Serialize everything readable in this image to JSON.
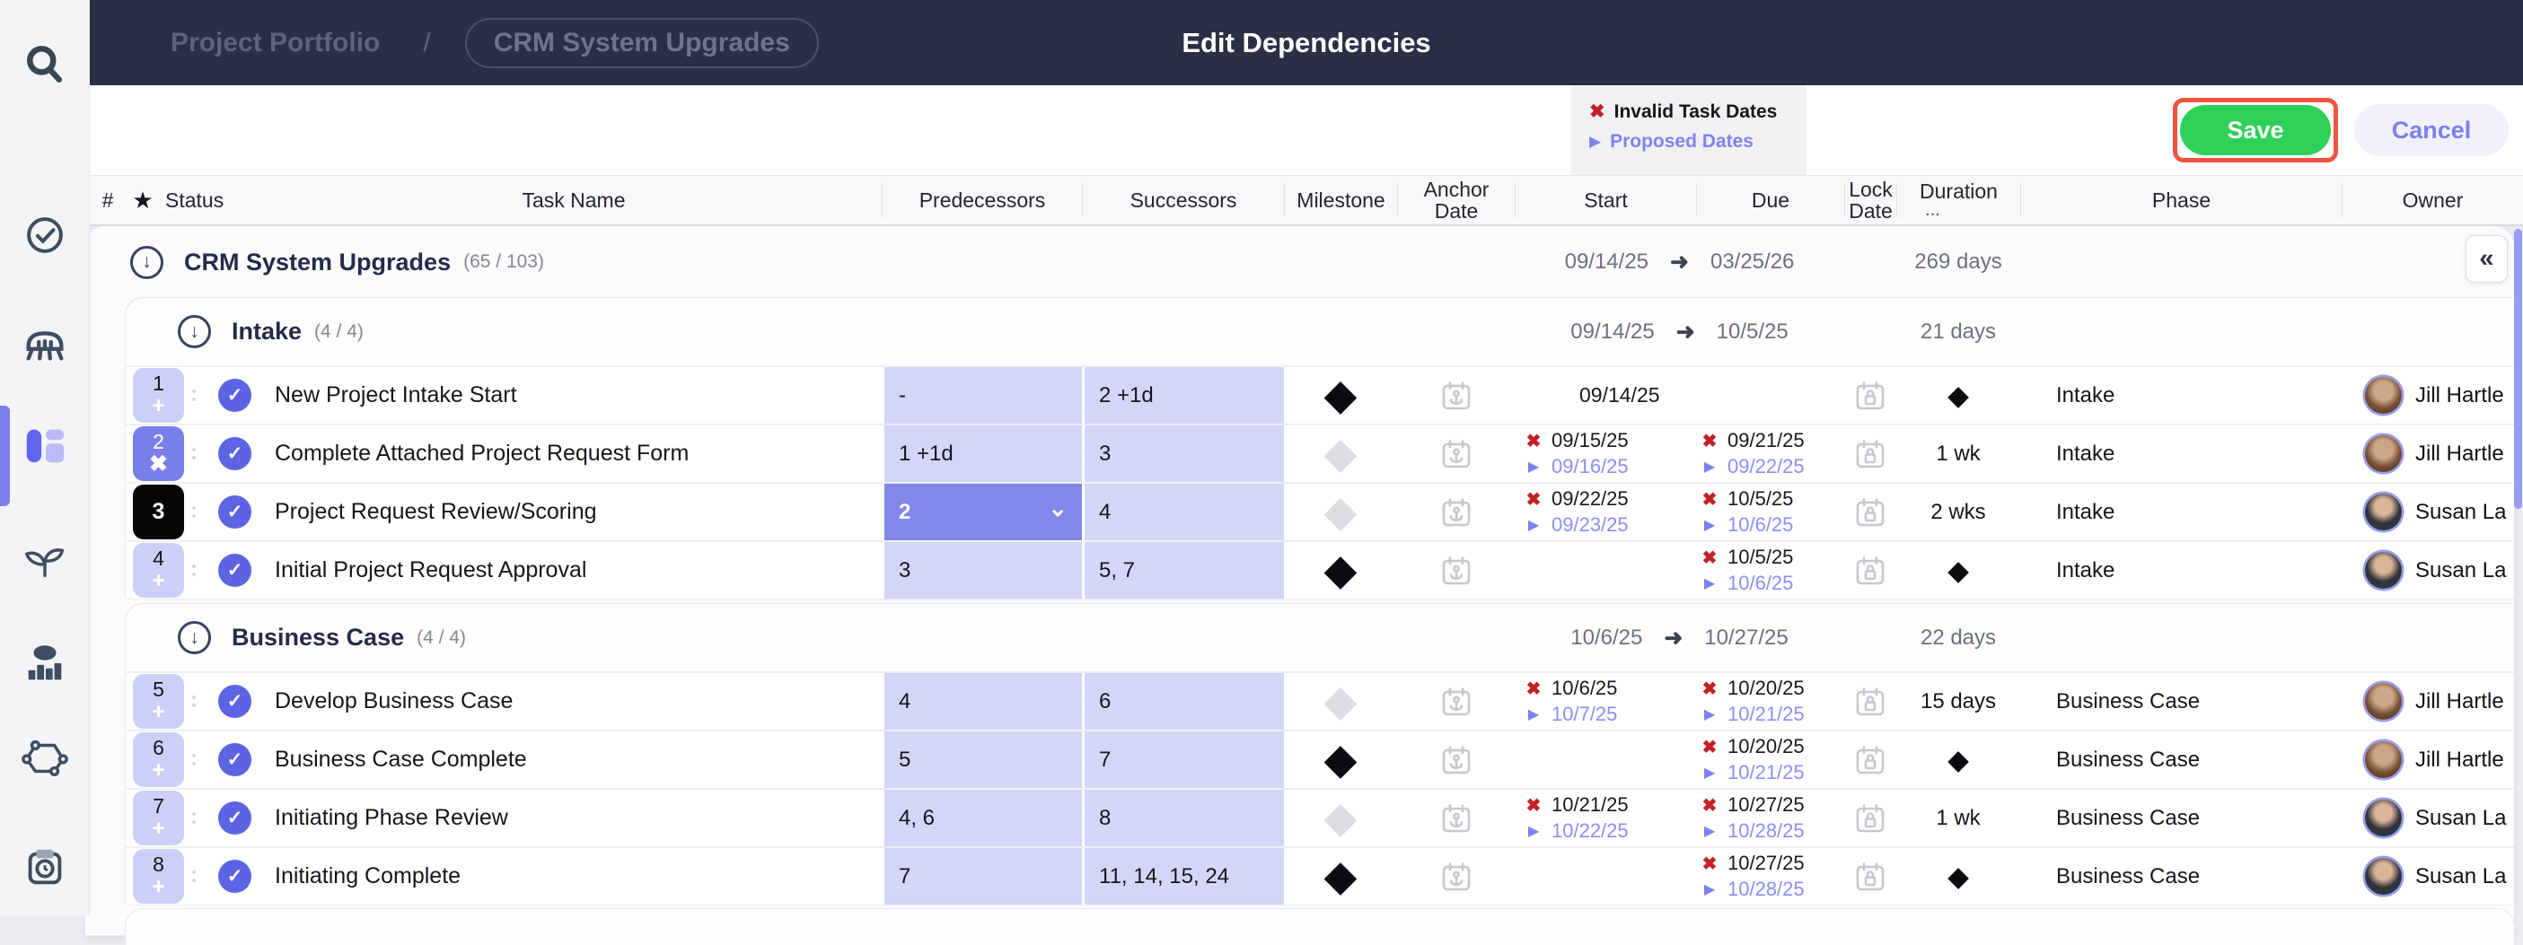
{
  "icons": {
    "invalid": "✖",
    "proposed": "▶",
    "arrow": "➜",
    "collapse": "↓",
    "collapse_panel": "«",
    "chevron_down": "⌄",
    "diamond": "◆",
    "check": "✓",
    "star": "★",
    "plus": "+",
    "x_action": "✖"
  },
  "colors": {
    "topbar": "#2b2f45",
    "accent_purple": "#5d64e4",
    "cell_purple": "#d3d6f9",
    "selected_purple": "#8287ec",
    "invalid_red": "#c32028",
    "proposed_purple": "#8a8ef5",
    "save_green": "#2ed157",
    "highlight_red": "#f25240"
  },
  "sidebar": {
    "items": [
      {
        "icon": "search-icon"
      },
      {
        "icon": "check-circle-icon"
      },
      {
        "icon": "bridge-icon"
      },
      {
        "icon": "board-icon",
        "active": true
      },
      {
        "icon": "seedling-icon"
      },
      {
        "icon": "people-chart-icon"
      },
      {
        "icon": "network-icon"
      },
      {
        "icon": "camera-icon"
      }
    ]
  },
  "header": {
    "breadcrumb_root": "Project Portfolio",
    "breadcrumb_separator": "/",
    "project_pill": "CRM System Upgrades",
    "title": "Edit Dependencies"
  },
  "toolbar": {
    "legend_invalid": "Invalid Task Dates",
    "legend_proposed": "Proposed Dates",
    "save": "Save",
    "cancel": "Cancel"
  },
  "grid": {
    "headers": {
      "num": "#",
      "status": "Status",
      "task": "Task Name",
      "pred": "Predecessors",
      "succ": "Successors",
      "milestone": "Milestone",
      "anchor_l1": "Anchor",
      "anchor_l2": "Date",
      "start": "Start",
      "due": "Due",
      "lock_l1": "Lock",
      "lock_l2": "Date",
      "duration": "Duration",
      "duration_more": "...",
      "phase": "Phase",
      "owner": "Owner"
    }
  },
  "project": {
    "name": "CRM System Upgrades",
    "count": "(65 / 103)",
    "start": "09/14/25",
    "due": "03/25/26",
    "duration": "269 days"
  },
  "groups": [
    {
      "name": "Intake",
      "count": "(4 / 4)",
      "start": "09/14/25",
      "due": "10/5/25",
      "duration": "21 days",
      "tasks": [
        {
          "num": "1",
          "action": "+",
          "chip": "light",
          "name": "New Project Intake Start",
          "pred": "-",
          "succ": "2 +1d",
          "milestone": "filled",
          "start": {
            "plain": "09/14/25"
          },
          "due": null,
          "duration": "◆",
          "phase": "Intake",
          "owner": "Jill Hartle",
          "avatar": "jill"
        },
        {
          "num": "2",
          "action": "✖",
          "chip": "purple",
          "name": "Complete Attached Project Request Form",
          "pred": "1 +1d",
          "succ": "3",
          "milestone": "outline",
          "start": {
            "invalid": "09/15/25",
            "proposed": "09/16/25"
          },
          "due": {
            "invalid": "09/21/25",
            "proposed": "09/22/25"
          },
          "duration": "1 wk",
          "phase": "Intake",
          "owner": "Jill Hartle",
          "avatar": "jill"
        },
        {
          "num": "3",
          "action": null,
          "chip": "black",
          "name": "Project Request Review/Scoring",
          "pred": "2",
          "pred_selected": true,
          "succ": "4",
          "milestone": "outline",
          "start": {
            "invalid": "09/22/25",
            "proposed": "09/23/25"
          },
          "due": {
            "invalid": "10/5/25",
            "proposed": "10/6/25"
          },
          "duration": "2 wks",
          "phase": "Intake",
          "owner": "Susan La",
          "avatar": "susan"
        },
        {
          "num": "4",
          "action": "+",
          "chip": "light",
          "name": "Initial Project Request Approval",
          "pred": "3",
          "succ": "5, 7",
          "milestone": "filled",
          "start": null,
          "due": {
            "invalid": "10/5/25",
            "proposed": "10/6/25"
          },
          "duration": "◆",
          "phase": "Intake",
          "owner": "Susan La",
          "avatar": "susan"
        }
      ]
    },
    {
      "name": "Business Case",
      "count": "(4 / 4)",
      "start": "10/6/25",
      "due": "10/27/25",
      "duration": "22 days",
      "tasks": [
        {
          "num": "5",
          "action": "+",
          "chip": "light",
          "name": "Develop Business Case",
          "pred": "4",
          "succ": "6",
          "milestone": "outline",
          "start": {
            "invalid": "10/6/25",
            "proposed": "10/7/25"
          },
          "due": {
            "invalid": "10/20/25",
            "proposed": "10/21/25"
          },
          "duration": "15 days",
          "phase": "Business Case",
          "owner": "Jill Hartle",
          "avatar": "jill"
        },
        {
          "num": "6",
          "action": "+",
          "chip": "light",
          "name": "Business Case Complete",
          "pred": "5",
          "succ": "7",
          "milestone": "filled",
          "start": null,
          "due": {
            "invalid": "10/20/25",
            "proposed": "10/21/25"
          },
          "duration": "◆",
          "phase": "Business Case",
          "owner": "Jill Hartle",
          "avatar": "jill"
        },
        {
          "num": "7",
          "action": "+",
          "chip": "light",
          "name": "Initiating Phase Review",
          "pred": "4, 6",
          "succ": "8",
          "milestone": "outline",
          "start": {
            "invalid": "10/21/25",
            "proposed": "10/22/25"
          },
          "due": {
            "invalid": "10/27/25",
            "proposed": "10/28/25"
          },
          "duration": "1 wk",
          "phase": "Business Case",
          "owner": "Susan La",
          "avatar": "susan"
        },
        {
          "num": "8",
          "action": "+",
          "chip": "light",
          "name": "Initiating Complete",
          "pred": "7",
          "succ": "11, 14, 15, 24",
          "milestone": "filled",
          "start": null,
          "due": {
            "invalid": "10/27/25",
            "proposed": "10/28/25"
          },
          "duration": "◆",
          "phase": "Business Case",
          "owner": "Susan La",
          "avatar": "susan"
        }
      ]
    }
  ]
}
